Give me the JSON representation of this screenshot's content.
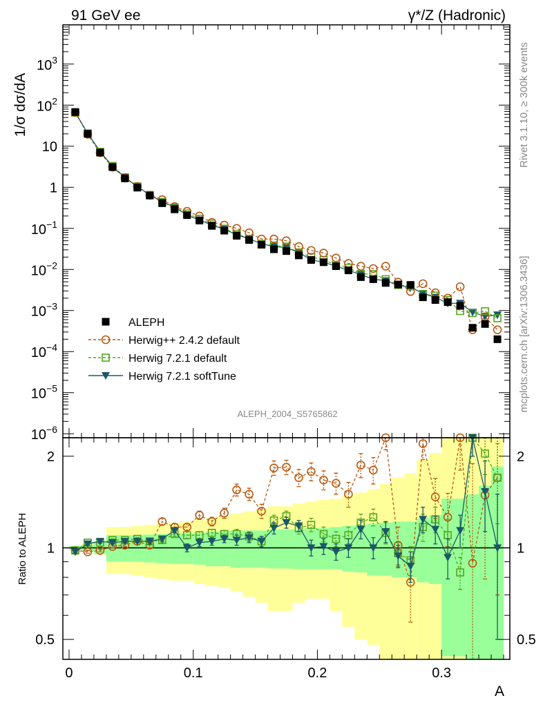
{
  "header": {
    "left": "91 GeV ee",
    "right": "γ*/Z (Hadronic)"
  },
  "side_labels": {
    "rivet": "Rivet 3.1.10, ≥ 300k events",
    "mcplots": "mcplots.cern.ch [arXiv:1306.3436]"
  },
  "analysis_id": "ALEPH_2004_S5765862",
  "chart_data": [
    {
      "type": "scatter",
      "panel": "main",
      "ylabel": "1/σ dσ/dA",
      "xlabel": "A",
      "yscale": "log",
      "xlim": [
        -0.005,
        0.355
      ],
      "ylim": [
        8e-07,
        9000
      ],
      "y_tick_labels": [
        "10^-6",
        "10^-5",
        "10^-4",
        "10^-3",
        "10^-2",
        "10^-1",
        "1",
        "10",
        "10^2",
        "10^3"
      ],
      "x_tick_labels": [
        "0",
        "0.1",
        "0.2",
        "0.3"
      ],
      "legend_position": "lower-left",
      "x": [
        0.005,
        0.015,
        0.025,
        0.035,
        0.045,
        0.055,
        0.065,
        0.075,
        0.085,
        0.095,
        0.105,
        0.115,
        0.125,
        0.135,
        0.145,
        0.155,
        0.165,
        0.175,
        0.185,
        0.195,
        0.205,
        0.215,
        0.225,
        0.235,
        0.245,
        0.255,
        0.265,
        0.275,
        0.285,
        0.295,
        0.305,
        0.315,
        0.325,
        0.335,
        0.345
      ],
      "series": [
        {
          "name": "ALEPH",
          "color": "#000000",
          "marker": "filled-square",
          "values": [
            68,
            20,
            7.0,
            3.1,
            1.65,
            0.98,
            0.63,
            0.41,
            0.29,
            0.21,
            0.155,
            0.115,
            0.088,
            0.066,
            0.052,
            0.04,
            0.031,
            0.028,
            0.022,
            0.017,
            0.015,
            0.012,
            0.0095,
            0.0065,
            0.0058,
            0.0047,
            0.0043,
            0.0042,
            0.0021,
            0.0018,
            0.0016,
            0.0013,
            0.00038,
            0.00047,
            0.0002
          ]
        },
        {
          "name": "Herwig++ 2.4.2 default",
          "color": "#b8570d",
          "marker": "open-circle",
          "line": "dashed",
          "values": [
            66,
            19.5,
            6.9,
            3.1,
            1.68,
            1.05,
            0.64,
            0.5,
            0.34,
            0.26,
            0.2,
            0.14,
            0.12,
            0.1,
            0.078,
            0.055,
            0.055,
            0.05,
            0.036,
            0.029,
            0.025,
            0.019,
            0.014,
            0.012,
            0.0105,
            0.012,
            0.0049,
            0.0029,
            0.0045,
            0.0027,
            0.002,
            0.0038,
            0.00034,
            0.0007,
            0.00034
          ]
        },
        {
          "name": "Herwig 7.2.1 default",
          "color": "#54a51e",
          "marker": "open-square",
          "line": "dashed",
          "values": [
            66,
            20.5,
            7.3,
            3.3,
            1.75,
            1.05,
            0.65,
            0.44,
            0.32,
            0.23,
            0.17,
            0.13,
            0.098,
            0.074,
            0.056,
            0.042,
            0.038,
            0.036,
            0.026,
            0.02,
            0.017,
            0.013,
            0.011,
            0.0078,
            0.0077,
            0.0058,
            0.0042,
            0.0039,
            0.0025,
            0.0023,
            0.0018,
            0.00097,
            0.00087,
            0.00096,
            0.00065
          ]
        },
        {
          "name": "Herwig 7.2.1 softTune",
          "color": "#1a5868",
          "marker": "filled-triangle-down",
          "line": "solid",
          "values": [
            66,
            20.6,
            7.4,
            3.2,
            1.74,
            1.03,
            0.66,
            0.44,
            0.33,
            0.21,
            0.16,
            0.12,
            0.095,
            0.07,
            0.056,
            0.042,
            0.036,
            0.034,
            0.026,
            0.017,
            0.015,
            0.012,
            0.0095,
            0.0075,
            0.0058,
            0.0053,
            0.0041,
            0.0037,
            0.0026,
            0.0021,
            0.0015,
            0.0015,
            0.00091,
            0.00072,
            0.00078
          ]
        }
      ]
    },
    {
      "type": "scatter",
      "panel": "ratio",
      "ylabel": "Ratio to ALEPH",
      "xlabel": "A",
      "ylim": [
        0.43,
        2.3
      ],
      "y_tick_labels": [
        "0.5",
        "1",
        "2"
      ],
      "x_tick_labels": [
        "0",
        "0.1",
        "0.2",
        "0.3"
      ],
      "x": [
        0.005,
        0.015,
        0.025,
        0.035,
        0.045,
        0.055,
        0.065,
        0.075,
        0.085,
        0.095,
        0.105,
        0.115,
        0.125,
        0.135,
        0.145,
        0.155,
        0.165,
        0.175,
        0.185,
        0.195,
        0.205,
        0.215,
        0.225,
        0.235,
        0.245,
        0.255,
        0.265,
        0.275,
        0.285,
        0.295,
        0.305,
        0.315,
        0.325,
        0.335,
        0.345
      ],
      "band_bins": [
        [
          0.0,
          0.01
        ],
        [
          0.01,
          0.02
        ],
        [
          0.02,
          0.03
        ],
        [
          0.03,
          0.04
        ],
        [
          0.04,
          0.05
        ],
        [
          0.05,
          0.06
        ],
        [
          0.06,
          0.07
        ],
        [
          0.07,
          0.08
        ],
        [
          0.08,
          0.09
        ],
        [
          0.09,
          0.1
        ],
        [
          0.1,
          0.11
        ],
        [
          0.11,
          0.12
        ],
        [
          0.12,
          0.13
        ],
        [
          0.13,
          0.14
        ],
        [
          0.14,
          0.15
        ],
        [
          0.15,
          0.16
        ],
        [
          0.16,
          0.17
        ],
        [
          0.17,
          0.18
        ],
        [
          0.18,
          0.19
        ],
        [
          0.19,
          0.2
        ],
        [
          0.2,
          0.21
        ],
        [
          0.21,
          0.22
        ],
        [
          0.22,
          0.23
        ],
        [
          0.23,
          0.24
        ],
        [
          0.24,
          0.25
        ],
        [
          0.25,
          0.26
        ],
        [
          0.26,
          0.27
        ],
        [
          0.27,
          0.28
        ],
        [
          0.28,
          0.29
        ],
        [
          0.29,
          0.3
        ],
        [
          0.3,
          0.31
        ],
        [
          0.31,
          0.32
        ],
        [
          0.32,
          0.33
        ],
        [
          0.33,
          0.34
        ],
        [
          0.34,
          0.35
        ]
      ],
      "bands": {
        "stat_color": "#99ff99",
        "total_color": "#ffff99",
        "stat_low": [
          0.985,
          0.975,
          0.955,
          0.9,
          0.9,
          0.9,
          0.895,
          0.89,
          0.885,
          0.885,
          0.88,
          0.87,
          0.87,
          0.86,
          0.86,
          0.86,
          0.855,
          0.855,
          0.85,
          0.85,
          0.85,
          0.85,
          0.835,
          0.83,
          0.81,
          0.81,
          0.8,
          0.8,
          0.77,
          0.76,
          0.44,
          0.44,
          0.43,
          0.43,
          0.43
        ],
        "stat_high": [
          1.015,
          1.025,
          1.05,
          1.1,
          1.1,
          1.1,
          1.105,
          1.11,
          1.115,
          1.115,
          1.12,
          1.13,
          1.135,
          1.14,
          1.14,
          1.14,
          1.15,
          1.15,
          1.15,
          1.16,
          1.16,
          1.17,
          1.18,
          1.19,
          1.2,
          1.21,
          1.22,
          1.22,
          1.25,
          1.28,
          1.45,
          1.45,
          1.5,
          1.6,
          1.85
        ],
        "total_low": [
          0.99,
          0.97,
          0.95,
          0.82,
          0.82,
          0.81,
          0.8,
          0.79,
          0.78,
          0.78,
          0.76,
          0.75,
          0.74,
          0.72,
          0.69,
          0.66,
          0.62,
          0.62,
          0.66,
          0.68,
          0.68,
          0.62,
          0.55,
          0.5,
          0.48,
          0.43,
          0.43,
          0.43,
          0.43,
          0.43,
          0.43,
          0.43,
          0.43,
          0.43,
          0.43
        ],
        "total_high": [
          1.01,
          1.03,
          1.05,
          1.17,
          1.17,
          1.18,
          1.19,
          1.2,
          1.21,
          1.22,
          1.24,
          1.25,
          1.27,
          1.3,
          1.32,
          1.34,
          1.37,
          1.37,
          1.4,
          1.42,
          1.44,
          1.45,
          1.48,
          1.52,
          1.56,
          1.62,
          1.7,
          1.76,
          1.95,
          2.05,
          2.3,
          2.3,
          2.3,
          2.3,
          2.3
        ]
      },
      "series": [
        {
          "name": "Herwig++ 2.4.2 default",
          "color": "#b8570d",
          "values": [
            0.98,
            0.97,
            0.98,
            1.01,
            1.02,
            1.05,
            1.02,
            1.22,
            1.17,
            1.17,
            1.28,
            1.22,
            1.3,
            1.55,
            1.5,
            1.32,
            1.83,
            1.84,
            1.7,
            1.78,
            1.67,
            1.63,
            1.5,
            1.87,
            1.8,
            2.3,
            1.02,
            0.77,
            2.2,
            1.47,
            1.26,
            2.3,
            0.89,
            1.49,
            1.7
          ],
          "err_up": [
            0.01,
            0.01,
            0.01,
            0.01,
            0.01,
            0.01,
            0.02,
            0.03,
            0.03,
            0.03,
            0.04,
            0.04,
            0.05,
            0.07,
            0.07,
            0.07,
            0.1,
            0.1,
            0.11,
            0.12,
            0.12,
            0.13,
            0.14,
            0.17,
            0.18,
            0.2,
            0.15,
            0.15,
            0.25,
            0.22,
            0.25,
            0.5,
            1.0,
            1.0,
            1.0
          ],
          "err_down": [
            0.01,
            0.01,
            0.01,
            0.01,
            0.01,
            0.01,
            0.02,
            0.03,
            0.03,
            0.03,
            0.04,
            0.04,
            0.05,
            0.07,
            0.07,
            0.07,
            0.1,
            0.1,
            0.11,
            0.12,
            0.12,
            0.13,
            0.14,
            0.17,
            0.18,
            0.2,
            0.15,
            0.2,
            0.25,
            0.22,
            0.25,
            0.5,
            0.46,
            0.7,
            1.0
          ]
        },
        {
          "name": "Herwig 7.2.1 default",
          "color": "#54a51e",
          "values": [
            0.98,
            1.04,
            1.04,
            1.06,
            1.06,
            1.07,
            1.05,
            1.06,
            1.11,
            1.1,
            1.1,
            1.12,
            1.11,
            1.11,
            1.09,
            1.05,
            1.23,
            1.27,
            1.16,
            1.19,
            1.11,
            1.07,
            1.1,
            1.21,
            1.26,
            1.12,
            0.96,
            0.91,
            1.17,
            1.24,
            1.1,
            0.83,
            2.3,
            2.04,
            1.7
          ],
          "err_up": [
            0.01,
            0.01,
            0.01,
            0.01,
            0.01,
            0.01,
            0.02,
            0.02,
            0.02,
            0.03,
            0.03,
            0.03,
            0.03,
            0.04,
            0.04,
            0.04,
            0.05,
            0.05,
            0.05,
            0.06,
            0.06,
            0.06,
            0.07,
            0.08,
            0.08,
            0.09,
            0.08,
            0.1,
            0.12,
            0.12,
            0.14,
            0.1,
            0.3,
            0.3,
            0.5
          ],
          "err_down": [
            0.01,
            0.01,
            0.01,
            0.01,
            0.01,
            0.01,
            0.02,
            0.02,
            0.02,
            0.03,
            0.03,
            0.03,
            0.03,
            0.04,
            0.04,
            0.04,
            0.05,
            0.05,
            0.05,
            0.06,
            0.06,
            0.06,
            0.07,
            0.08,
            0.08,
            0.09,
            0.08,
            0.1,
            0.12,
            0.12,
            0.14,
            0.1,
            0.3,
            0.3,
            0.5
          ]
        },
        {
          "name": "Herwig 7.2.1 softTune",
          "color": "#1a5868",
          "values": [
            0.97,
            1.03,
            1.05,
            1.04,
            1.05,
            1.05,
            1.05,
            1.07,
            1.14,
            1.0,
            1.04,
            1.05,
            1.07,
            1.06,
            1.08,
            1.05,
            1.16,
            1.21,
            1.18,
            1.0,
            1.01,
            0.97,
            1.0,
            1.15,
            1.0,
            1.13,
            0.94,
            0.87,
            1.24,
            1.15,
            0.93,
            1.14,
            2.3,
            1.53,
            1.0
          ],
          "err_up": [
            0.01,
            0.01,
            0.01,
            0.01,
            0.01,
            0.01,
            0.02,
            0.02,
            0.02,
            0.03,
            0.03,
            0.03,
            0.03,
            0.04,
            0.04,
            0.04,
            0.05,
            0.05,
            0.05,
            0.06,
            0.06,
            0.06,
            0.07,
            0.08,
            0.08,
            0.09,
            0.08,
            0.1,
            0.12,
            0.12,
            0.14,
            0.14,
            0.3,
            0.4,
            0.5
          ],
          "err_down": [
            0.01,
            0.01,
            0.01,
            0.01,
            0.01,
            0.01,
            0.02,
            0.02,
            0.02,
            0.03,
            0.03,
            0.03,
            0.03,
            0.04,
            0.04,
            0.04,
            0.05,
            0.05,
            0.05,
            0.06,
            0.06,
            0.06,
            0.07,
            0.08,
            0.08,
            0.09,
            0.08,
            0.1,
            0.12,
            0.12,
            0.14,
            0.14,
            0.3,
            0.4,
            0.5
          ]
        }
      ]
    }
  ]
}
